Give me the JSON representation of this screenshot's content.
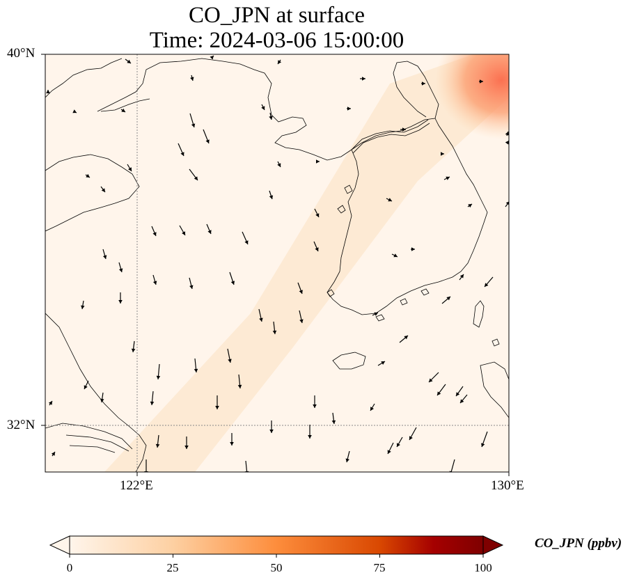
{
  "title": {
    "line1": "CO_JPN at surface",
    "line2": "Time: 2024-03-06 15:00:00"
  },
  "map": {
    "lat_labels": [
      "40°N",
      "32°N"
    ],
    "lon_labels": [
      "122°E",
      "130°E"
    ],
    "background_color": "#fff5eb",
    "hotspot_color": "#fc8d59",
    "coastline_color": "#000000",
    "gridline_color": "#888888"
  },
  "colorbar": {
    "label": "CO_JPN (ppbv)",
    "ticks": [
      "0",
      "25",
      "50",
      "75",
      "100"
    ],
    "colors": [
      "#fff5eb",
      "#fdd0a2",
      "#fd8d3c",
      "#d94801",
      "#a50000",
      "#7f0000"
    ]
  }
}
